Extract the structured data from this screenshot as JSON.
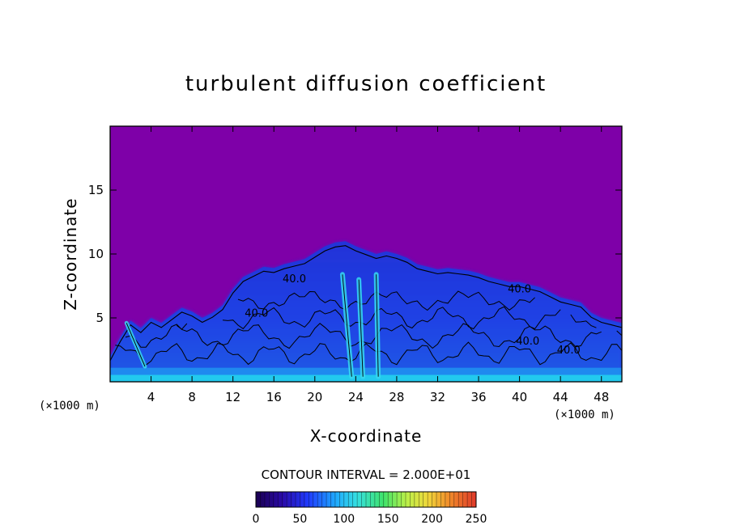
{
  "chart_data": {
    "type": "heatmap",
    "title": "turbulent diffusion coefficient",
    "xlabel": "X-coordinate",
    "ylabel": "Z-coordinate",
    "x_unit": "(×1000 m)",
    "y_unit": "(×1000 m)",
    "xlim": [
      0,
      50
    ],
    "ylim": [
      0,
      20
    ],
    "x_ticks": [
      4,
      8,
      12,
      16,
      20,
      24,
      28,
      32,
      36,
      40,
      44,
      48
    ],
    "y_ticks": [
      5,
      10,
      15
    ],
    "contour_interval_text": "CONTOUR INTERVAL = 2.000E+01",
    "contour_labels": [
      {
        "text": "40.0",
        "x": 18.0,
        "z": 7.8
      },
      {
        "text": "40.0",
        "x": 14.3,
        "z": 5.1
      },
      {
        "text": "40.0",
        "x": 40.0,
        "z": 7.0
      },
      {
        "text": "40.0",
        "x": 40.8,
        "z": 2.9
      },
      {
        "text": "40.0",
        "x": 44.8,
        "z": 2.2
      }
    ],
    "colorbar": {
      "min": 0,
      "max": 250,
      "ticks": [
        0,
        50,
        100,
        150,
        200,
        250
      ],
      "colors": [
        "#1a0050",
        "#2a0aa8",
        "#1f3cff",
        "#1fa8ff",
        "#36e0e0",
        "#3fe36a",
        "#b8f04a",
        "#f0d83a",
        "#f08a2a",
        "#e0382a"
      ]
    },
    "background_color": "#7e00a8",
    "cloud_top_profile": [
      [
        0,
        2.0
      ],
      [
        1,
        3.5
      ],
      [
        2,
        4.8
      ],
      [
        3,
        4.2
      ],
      [
        4,
        5.0
      ],
      [
        5,
        4.6
      ],
      [
        6,
        5.2
      ],
      [
        7,
        5.8
      ],
      [
        8,
        5.5
      ],
      [
        9,
        5.0
      ],
      [
        10,
        5.4
      ],
      [
        11,
        6.0
      ],
      [
        12,
        7.3
      ],
      [
        13,
        8.2
      ],
      [
        14,
        8.6
      ],
      [
        15,
        9.0
      ],
      [
        16,
        8.9
      ],
      [
        17,
        9.2
      ],
      [
        18,
        9.4
      ],
      [
        19,
        9.6
      ],
      [
        20,
        10.1
      ],
      [
        21,
        10.6
      ],
      [
        22,
        10.9
      ],
      [
        23,
        11.0
      ],
      [
        24,
        10.6
      ],
      [
        25,
        10.3
      ],
      [
        26,
        10.0
      ],
      [
        27,
        10.2
      ],
      [
        28,
        10.0
      ],
      [
        29,
        9.7
      ],
      [
        30,
        9.2
      ],
      [
        31,
        9.0
      ],
      [
        32,
        8.8
      ],
      [
        33,
        8.9
      ],
      [
        34,
        8.8
      ],
      [
        35,
        8.7
      ],
      [
        36,
        8.5
      ],
      [
        37,
        8.2
      ],
      [
        38,
        8.0
      ],
      [
        39,
        7.8
      ],
      [
        40,
        7.8
      ],
      [
        41,
        7.6
      ],
      [
        42,
        7.4
      ],
      [
        43,
        7.0
      ],
      [
        44,
        6.6
      ],
      [
        45,
        6.4
      ],
      [
        46,
        6.2
      ],
      [
        47,
        5.4
      ],
      [
        48,
        5.0
      ],
      [
        49,
        4.8
      ],
      [
        50,
        4.6
      ]
    ],
    "high_value_streaks": [
      {
        "x0": 1.6,
        "z0": 4.6,
        "x1": 3.4,
        "z1": 1.2
      },
      {
        "x0": 22.7,
        "z0": 8.4,
        "x1": 23.6,
        "z1": 0.4
      },
      {
        "x0": 24.3,
        "z0": 8.0,
        "x1": 24.7,
        "z1": 0.4
      },
      {
        "x0": 26.0,
        "z0": 8.4,
        "x1": 26.2,
        "z1": 0.4
      }
    ]
  }
}
